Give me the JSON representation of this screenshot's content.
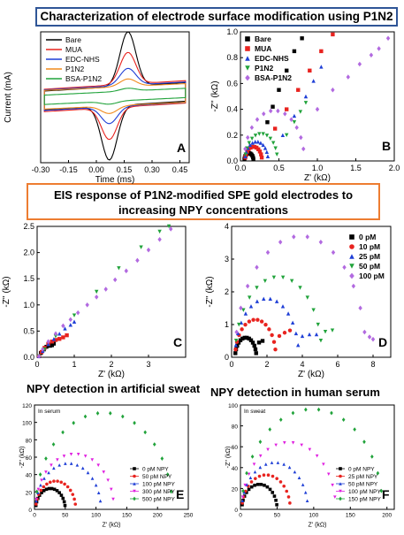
{
  "banners": {
    "top": "Characterization of electrode surface modification using P1N2",
    "middle_line1": "EIS response of P1N2-modified SPE gold electrodes to",
    "middle_line2": "increasing NPY concentrations"
  },
  "section_titles": {
    "sweat": "NPY detection in artificial sweat",
    "serum": "NPY detection in human serum"
  },
  "chart_data": [
    {
      "panel": "A",
      "type": "line",
      "xlabel": "Time (ms)",
      "ylabel": "Current (mA)",
      "xlim": [
        -0.3,
        0.5
      ],
      "ylim": [
        -0.35,
        0.35
      ],
      "xticks": [
        "-0.30",
        "-0.15",
        "0.00",
        "0.15",
        "0.30",
        "0.45"
      ],
      "legend": [
        "Bare",
        "MUA",
        "EDC-NHS",
        "P1N2",
        "BSA-P1N2"
      ],
      "colors": [
        "#000000",
        "#e8231f",
        "#1f3fd6",
        "#f08a1c",
        "#21a33b"
      ],
      "series": [
        {
          "name": "Bare",
          "peak": 0.29,
          "base": 0.05,
          "slope": 0.15
        },
        {
          "name": "MUA",
          "peak": 0.17,
          "base": 0.06,
          "slope": 0.15
        },
        {
          "name": "EDC-NHS",
          "peak": 0.09,
          "base": 0.055,
          "slope": 0.14
        },
        {
          "name": "P1N2",
          "peak": 0.04,
          "base": 0.05,
          "slope": 0.12
        },
        {
          "name": "BSA-P1N2",
          "peak": 0.015,
          "base": 0.025,
          "slope": 0.12
        }
      ]
    },
    {
      "panel": "B",
      "type": "scatter",
      "xlabel": "Z' (kΩ)",
      "ylabel": "-Z'' (kΩ)",
      "xlim": [
        0,
        2.0
      ],
      "ylim": [
        0,
        1.0
      ],
      "xticks": [
        "0.0",
        "0.5",
        "1.0",
        "1.5",
        "2.0"
      ],
      "yticks": [
        "0.0",
        "0.2",
        "0.4",
        "0.6",
        "0.8",
        "1.0"
      ],
      "legend": [
        "Bare",
        "MUA",
        "EDC-NHS",
        "P1N2",
        "BSA-P1N2"
      ],
      "colors": [
        "#000000",
        "#e8231f",
        "#1f3fd6",
        "#21a33b",
        "#b26ae0"
      ],
      "markers": [
        "square",
        "square",
        "triangle",
        "tri-down",
        "diamond"
      ],
      "series": [
        {
          "name": "Bare",
          "r0": 0.05,
          "d": 0.12,
          "tail": [
            [
              0.35,
              0.3
            ],
            [
              0.42,
              0.42
            ],
            [
              0.5,
              0.55
            ],
            [
              0.6,
              0.7
            ],
            [
              0.7,
              0.85
            ],
            [
              0.8,
              0.95
            ]
          ]
        },
        {
          "name": "MUA",
          "r0": 0.06,
          "d": 0.22,
          "tail": [
            [
              0.45,
              0.25
            ],
            [
              0.6,
              0.4
            ],
            [
              0.75,
              0.55
            ],
            [
              0.9,
              0.7
            ],
            [
              1.05,
              0.85
            ],
            [
              1.2,
              0.98
            ]
          ]
        },
        {
          "name": "EDC-NHS",
          "r0": 0.06,
          "d": 0.3,
          "tail": [
            [
              0.55,
              0.2
            ],
            [
              0.7,
              0.35
            ],
            [
              0.85,
              0.5
            ],
            [
              0.95,
              0.62
            ],
            [
              1.05,
              0.73
            ]
          ]
        },
        {
          "name": "P1N2",
          "r0": 0.06,
          "d": 0.42,
          "tail": [
            [
              0.6,
              0.2
            ],
            [
              0.7,
              0.3
            ],
            [
              0.78,
              0.38
            ],
            [
              0.85,
              0.45
            ]
          ]
        },
        {
          "name": "BSA-P1N2",
          "r0": 0.05,
          "d": 0.78,
          "tail": [
            [
              1.0,
              0.4
            ],
            [
              1.2,
              0.55
            ],
            [
              1.4,
              0.65
            ],
            [
              1.55,
              0.75
            ],
            [
              1.7,
              0.82
            ],
            [
              1.8,
              0.87
            ],
            [
              1.92,
              0.95
            ]
          ]
        }
      ]
    },
    {
      "panel": "C",
      "type": "scatter",
      "xlabel": "Z' (kΩ)",
      "ylabel": "-Z'' (kΩ)",
      "xlim": [
        0,
        4.0
      ],
      "ylim": [
        0,
        2.5
      ],
      "xticks": [
        "0",
        "1",
        "2",
        "3"
      ],
      "yticks": [
        "0.0",
        "0.5",
        "1.0",
        "1.5",
        "2.0",
        "2.5"
      ],
      "colors": [
        "#000000",
        "#e8231f",
        "#1f3fd6",
        "#21a33b",
        "#b26ae0"
      ],
      "series": [
        {
          "name": "0 pM",
          "pts": [
            [
              0.05,
              0.02
            ],
            [
              0.1,
              0.08
            ],
            [
              0.18,
              0.15
            ],
            [
              0.25,
              0.2
            ],
            [
              0.3,
              0.22
            ],
            [
              0.35,
              0.22
            ],
            [
              0.4,
              0.23
            ],
            [
              0.45,
              0.26
            ]
          ]
        },
        {
          "name": "10 pM",
          "pts": [
            [
              0.05,
              0.02
            ],
            [
              0.12,
              0.1
            ],
            [
              0.2,
              0.18
            ],
            [
              0.3,
              0.25
            ],
            [
              0.4,
              0.3
            ],
            [
              0.5,
              0.33
            ],
            [
              0.6,
              0.35
            ],
            [
              0.7,
              0.38
            ],
            [
              0.8,
              0.42
            ]
          ]
        },
        {
          "name": "25 pM",
          "pts": [
            [
              0.05,
              0.02
            ],
            [
              0.15,
              0.12
            ],
            [
              0.3,
              0.25
            ],
            [
              0.45,
              0.35
            ],
            [
              0.6,
              0.45
            ],
            [
              0.75,
              0.55
            ],
            [
              0.9,
              0.62
            ],
            [
              1.0,
              0.68
            ]
          ]
        },
        {
          "name": "50 pM",
          "pts": [
            [
              0.05,
              0.02
            ],
            [
              0.2,
              0.15
            ],
            [
              0.5,
              0.4
            ],
            [
              1.0,
              0.8
            ],
            [
              1.6,
              1.25
            ],
            [
              2.2,
              1.7
            ],
            [
              2.8,
              2.1
            ],
            [
              3.3,
              2.4
            ],
            [
              3.55,
              2.5
            ]
          ]
        },
        {
          "name": "100 pM",
          "pts": [
            [
              0.05,
              0.02
            ],
            [
              0.15,
              0.15
            ],
            [
              0.3,
              0.3
            ],
            [
              0.5,
              0.45
            ],
            [
              0.7,
              0.6
            ],
            [
              0.9,
              0.72
            ],
            [
              1.1,
              0.85
            ],
            [
              1.35,
              1.0
            ],
            [
              1.6,
              1.15
            ],
            [
              1.85,
              1.3
            ],
            [
              2.1,
              1.48
            ],
            [
              2.4,
              1.65
            ],
            [
              2.7,
              1.85
            ],
            [
              3.0,
              2.05
            ],
            [
              3.3,
              2.25
            ],
            [
              3.6,
              2.45
            ]
          ]
        }
      ]
    },
    {
      "panel": "D",
      "type": "scatter",
      "xlabel": "Z' (kΩ)",
      "ylabel": "-Z'' (kΩ)",
      "xlim": [
        0,
        9
      ],
      "ylim": [
        0,
        4
      ],
      "xticks": [
        "0",
        "2",
        "4",
        "6",
        "8"
      ],
      "yticks": [
        "0",
        "1",
        "2",
        "3",
        "4"
      ],
      "legend": [
        "0 pM",
        "10 pM",
        "25 pM",
        "50 pM",
        "100 pM"
      ],
      "colors": [
        "#000000",
        "#e8231f",
        "#1f3fd6",
        "#21a33b",
        "#b26ae0"
      ],
      "series": [
        {
          "name": "0 pM",
          "r0": 0.2,
          "d": 1.2,
          "tail": [
            [
              1.55,
              0.45
            ],
            [
              1.75,
              0.5
            ]
          ]
        },
        {
          "name": "10 pM",
          "r0": 0.2,
          "d": 2.3,
          "tail": [
            [
              2.7,
              0.65
            ],
            [
              3.0,
              0.75
            ],
            [
              3.3,
              0.82
            ]
          ]
        },
        {
          "name": "25 pM",
          "r0": 0.2,
          "d": 3.6,
          "tail": [
            [
              4.0,
              0.65
            ],
            [
              4.4,
              0.7
            ],
            [
              4.8,
              0.7
            ]
          ]
        },
        {
          "name": "50 pM",
          "r0": 0.2,
          "d": 4.9,
          "tail": [
            [
              5.3,
              0.78
            ],
            [
              5.7,
              0.82
            ]
          ]
        },
        {
          "name": "100 pM",
          "r0": 0.2,
          "d": 7.4,
          "tail": [
            [
              7.8,
              0.62
            ],
            [
              8.0,
              0.55
            ]
          ]
        }
      ]
    },
    {
      "panel": "E",
      "type": "scatter",
      "annotation": "In serum",
      "xlabel": "Z' (kΩ)",
      "ylabel": "-Z'' (kΩ)",
      "xlim": [
        0,
        250
      ],
      "ylim": [
        0,
        120
      ],
      "xticks": [
        "0",
        "50",
        "100",
        "150",
        "200",
        "250"
      ],
      "yticks": [
        "0",
        "20",
        "40",
        "60",
        "80",
        "100",
        "120"
      ],
      "legend": [
        "0 pM NPY",
        "50 pM NPY",
        "100 pM NPY",
        "300 pM NPY",
        "500 pM NPY"
      ],
      "colors": [
        "#000000",
        "#e8231f",
        "#1f3fd6",
        "#e020e0",
        "#21a33b"
      ],
      "series": [
        {
          "name": "0 pM NPY",
          "r0": 2,
          "d": 48
        },
        {
          "name": "50 pM NPY",
          "r0": 2,
          "d": 65
        },
        {
          "name": "100 pM NPY",
          "r0": 2,
          "d": 106
        },
        {
          "name": "300 pM NPY",
          "r0": 2,
          "d": 127
        },
        {
          "name": "500 pM NPY",
          "r0": 2,
          "d": 222
        }
      ]
    },
    {
      "panel": "F",
      "type": "scatter",
      "annotation": "In sweat",
      "xlabel": "Z' (kΩ)",
      "ylabel": "-Z'' (kΩ)",
      "xlim": [
        0,
        210
      ],
      "ylim": [
        0,
        100
      ],
      "xticks": [
        "0",
        "50",
        "100",
        "150",
        "200"
      ],
      "yticks": [
        "0",
        "20",
        "40",
        "60",
        "80",
        "100"
      ],
      "legend": [
        "0 pM NPY",
        "25 pM NPY",
        "50 pM NPY",
        "100 pM NPY",
        "150 pM NPY"
      ],
      "colors": [
        "#000000",
        "#e8231f",
        "#1f3fd6",
        "#e020e0",
        "#21a33b"
      ],
      "series": [
        {
          "name": "0 pM NPY",
          "r0": 2,
          "d": 48
        },
        {
          "name": "25 pM NPY",
          "r0": 2,
          "d": 66
        },
        {
          "name": "50 pM NPY",
          "r0": 2,
          "d": 90
        },
        {
          "name": "100 pM NPY",
          "r0": 2,
          "d": 128
        },
        {
          "name": "150 pM NPY",
          "r0": 2,
          "d": 192
        }
      ]
    }
  ]
}
